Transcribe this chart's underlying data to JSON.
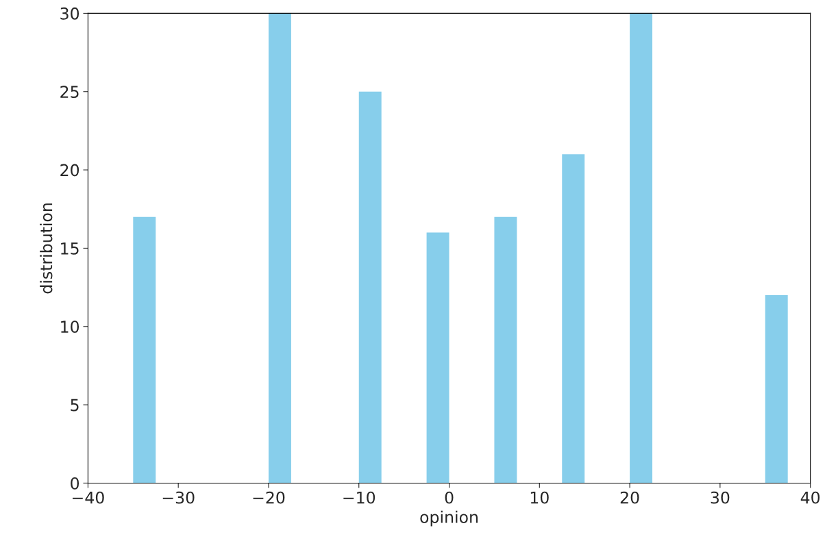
{
  "chart_data": {
    "type": "histogram",
    "xlabel": "opinion",
    "ylabel": "distribution",
    "bins": [
      -35,
      -32.5,
      -30,
      -27.5,
      -25,
      -22.5,
      -20,
      -17.5,
      -15,
      -12.5,
      -10,
      -7.5,
      -5,
      -2.5,
      0,
      2.5,
      5,
      7.5,
      10,
      12.5,
      15,
      17.5,
      20,
      22.5,
      25,
      27.5,
      30,
      32.5,
      35,
      37.5
    ],
    "values": [
      17,
      0,
      0,
      0,
      0,
      0,
      30,
      0,
      0,
      0,
      25,
      0,
      0,
      16,
      0,
      0,
      17,
      0,
      0,
      21,
      0,
      0,
      30,
      0,
      0,
      0,
      0,
      0,
      12
    ],
    "color": "#87ceeb",
    "xlim": [
      -40,
      40
    ],
    "xticks": [
      {
        "value": -40,
        "label": "−40"
      },
      {
        "value": -30,
        "label": "−30"
      },
      {
        "value": -20,
        "label": "−20"
      },
      {
        "value": -10,
        "label": "−10"
      },
      0,
      10,
      20,
      30,
      40
    ],
    "ylim": [
      0,
      30
    ],
    "yticks": [
      0,
      5,
      10,
      15,
      20,
      25,
      30
    ],
    "grid": false
  }
}
